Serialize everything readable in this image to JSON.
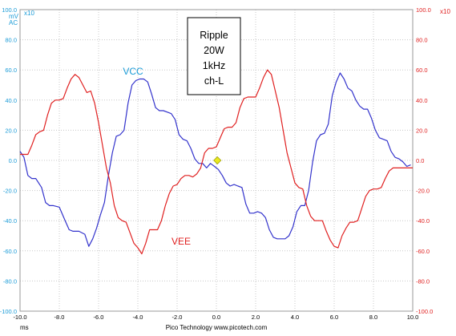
{
  "colors": {
    "vcc": "#3333cc",
    "vee": "#e02020",
    "left_axis": "#1a9bd7",
    "right_axis": "#e02020",
    "grid": "#c8c8c8",
    "marker": "#e8e820"
  },
  "left_axis": {
    "multiplier": "x10",
    "units": [
      "mV",
      "AC"
    ]
  },
  "right_axis": {
    "multiplier": "x10"
  },
  "x_axis": {
    "unit": "ms",
    "footer": "Pico Technology  www.picotech.com"
  },
  "annotation": {
    "lines": [
      "Ripple",
      "20W",
      "1kHz",
      "ch-L"
    ]
  },
  "chart_data": {
    "type": "line",
    "xlim": [
      -10,
      10
    ],
    "ylim_left": [
      -100,
      100
    ],
    "ylim_right": [
      -100,
      100
    ],
    "grid": true,
    "x_ticks": [
      -10,
      -8,
      -6,
      -4,
      -2,
      0,
      2,
      4,
      6,
      8,
      10
    ],
    "x_tick_labels": [
      "-10.0",
      "-8.0",
      "-6.0",
      "-4.0",
      "-2.0",
      "0.0",
      "2.0",
      "4.0",
      "6.0",
      "8.0",
      "10.0"
    ],
    "left_tick_labels": [
      "100.0",
      "80.0",
      "60.0",
      "40.0",
      "20.0",
      "0.0",
      "-20.0",
      "-40.0",
      "-60.0",
      "-80.0",
      "-100.0"
    ],
    "right_tick_labels": [
      "100.0",
      "80.0",
      "60.0",
      "40.0",
      "20.0",
      "0.0",
      "-20.0",
      "-40.0",
      "-60.0",
      "-80.0",
      "-100.0"
    ],
    "marker": {
      "x": 0.05,
      "y": 0
    },
    "series": [
      {
        "name": "VCC",
        "axis": "left",
        "color": "#3333cc",
        "x": [
          -10,
          -9.8,
          -9.6,
          -9.4,
          -9.2,
          -8.9,
          -8.7,
          -8.5,
          -8.3,
          -8.0,
          -7.7,
          -7.5,
          -7.3,
          -7.0,
          -6.7,
          -6.5,
          -6.3,
          -6.1,
          -5.9,
          -5.7,
          -5.5,
          -5.3,
          -5.1,
          -4.9,
          -4.7,
          -4.5,
          -4.3,
          -4.1,
          -3.9,
          -3.7,
          -3.5,
          -3.3,
          -3.1,
          -2.9,
          -2.7,
          -2.5,
          -2.3,
          -2.1,
          -1.9,
          -1.7,
          -1.5,
          -1.3,
          -1.1,
          -0.9,
          -0.7,
          -0.5,
          -0.3,
          -0.1,
          0.1,
          0.3,
          0.5,
          0.7,
          0.9,
          1.1,
          1.3,
          1.5,
          1.7,
          1.9,
          2.1,
          2.3,
          2.5,
          2.7,
          2.9,
          3.1,
          3.3,
          3.5,
          3.7,
          3.9,
          4.1,
          4.3,
          4.5,
          4.7,
          4.9,
          5.1,
          5.3,
          5.5,
          5.7,
          5.9,
          6.1,
          6.3,
          6.5,
          6.7,
          6.9,
          7.1,
          7.3,
          7.5,
          7.7,
          7.9,
          8.1,
          8.3,
          8.5,
          8.7,
          8.9,
          9.1,
          9.3,
          9.5,
          9.7,
          9.9
        ],
        "values": [
          6,
          2,
          -10,
          -12,
          -12,
          -18,
          -28,
          -30,
          -30,
          -31,
          -40,
          -46,
          -47,
          -47,
          -49,
          -57,
          -52,
          -45,
          -36,
          -28,
          -10,
          5,
          16,
          17,
          20,
          38,
          50,
          53,
          54,
          54,
          52,
          44,
          35,
          33,
          33,
          32,
          31,
          27,
          17,
          14,
          13,
          8,
          1,
          -2,
          -2,
          -5,
          -2,
          -4,
          -6,
          -10,
          -15,
          -17,
          -16,
          -17,
          -18,
          -29,
          -35,
          -35,
          -34,
          -35,
          -38,
          -46,
          -51,
          -52,
          -52,
          -52,
          -50,
          -44,
          -34,
          -30,
          -30,
          -20,
          -1,
          13,
          17,
          18,
          24,
          43,
          52,
          58,
          54,
          48,
          46,
          40,
          36,
          34,
          34,
          28,
          20,
          15,
          14,
          13,
          6,
          2,
          1,
          -1,
          -4,
          -3
        ]
      },
      {
        "name": "VEE",
        "axis": "right",
        "color": "#e02020",
        "x": [
          -10,
          -9.8,
          -9.6,
          -9.4,
          -9.2,
          -9.0,
          -8.8,
          -8.6,
          -8.4,
          -8.2,
          -8.0,
          -7.8,
          -7.6,
          -7.4,
          -7.2,
          -7.0,
          -6.8,
          -6.6,
          -6.4,
          -6.2,
          -6.0,
          -5.8,
          -5.6,
          -5.4,
          -5.2,
          -5.0,
          -4.8,
          -4.6,
          -4.4,
          -4.2,
          -4.0,
          -3.8,
          -3.6,
          -3.4,
          -3.2,
          -3.0,
          -2.8,
          -2.6,
          -2.4,
          -2.2,
          -2.0,
          -1.8,
          -1.6,
          -1.4,
          -1.2,
          -1.0,
          -0.8,
          -0.6,
          -0.4,
          -0.2,
          0.0,
          0.2,
          0.4,
          0.6,
          0.8,
          1.0,
          1.2,
          1.4,
          1.6,
          1.8,
          2.0,
          2.2,
          2.4,
          2.6,
          2.8,
          3.0,
          3.2,
          3.4,
          3.6,
          3.8,
          4.0,
          4.2,
          4.4,
          4.6,
          4.8,
          5.0,
          5.2,
          5.4,
          5.6,
          5.8,
          6.0,
          6.2,
          6.4,
          6.6,
          6.8,
          7.0,
          7.2,
          7.4,
          7.6,
          7.8,
          8.0,
          8.2,
          8.4,
          8.6,
          8.8,
          9.0,
          9.2,
          9.4,
          9.6,
          9.8,
          10.0
        ],
        "values": [
          4,
          4,
          4,
          10,
          17,
          19,
          20,
          30,
          38,
          40,
          40,
          41,
          48,
          54,
          57,
          55,
          50,
          45,
          46,
          38,
          25,
          10,
          -5,
          -15,
          -30,
          -38,
          -40,
          -41,
          -48,
          -55,
          -58,
          -62,
          -55,
          -46,
          -46,
          -46,
          -40,
          -30,
          -22,
          -17,
          -16,
          -12,
          -10,
          -10,
          -11,
          -9,
          -5,
          5,
          8,
          8,
          9,
          15,
          21,
          22,
          22,
          25,
          35,
          41,
          42,
          42,
          42,
          48,
          55,
          60,
          57,
          46,
          35,
          20,
          5,
          -5,
          -15,
          -18,
          -19,
          -30,
          -37,
          -40,
          -40,
          -40,
          -47,
          -53,
          -57,
          -58,
          -50,
          -45,
          -41,
          -41,
          -40,
          -32,
          -24,
          -20,
          -19,
          -19,
          -18,
          -12,
          -7,
          -5,
          -5,
          -5,
          -5,
          -5,
          -5
        ]
      }
    ]
  }
}
